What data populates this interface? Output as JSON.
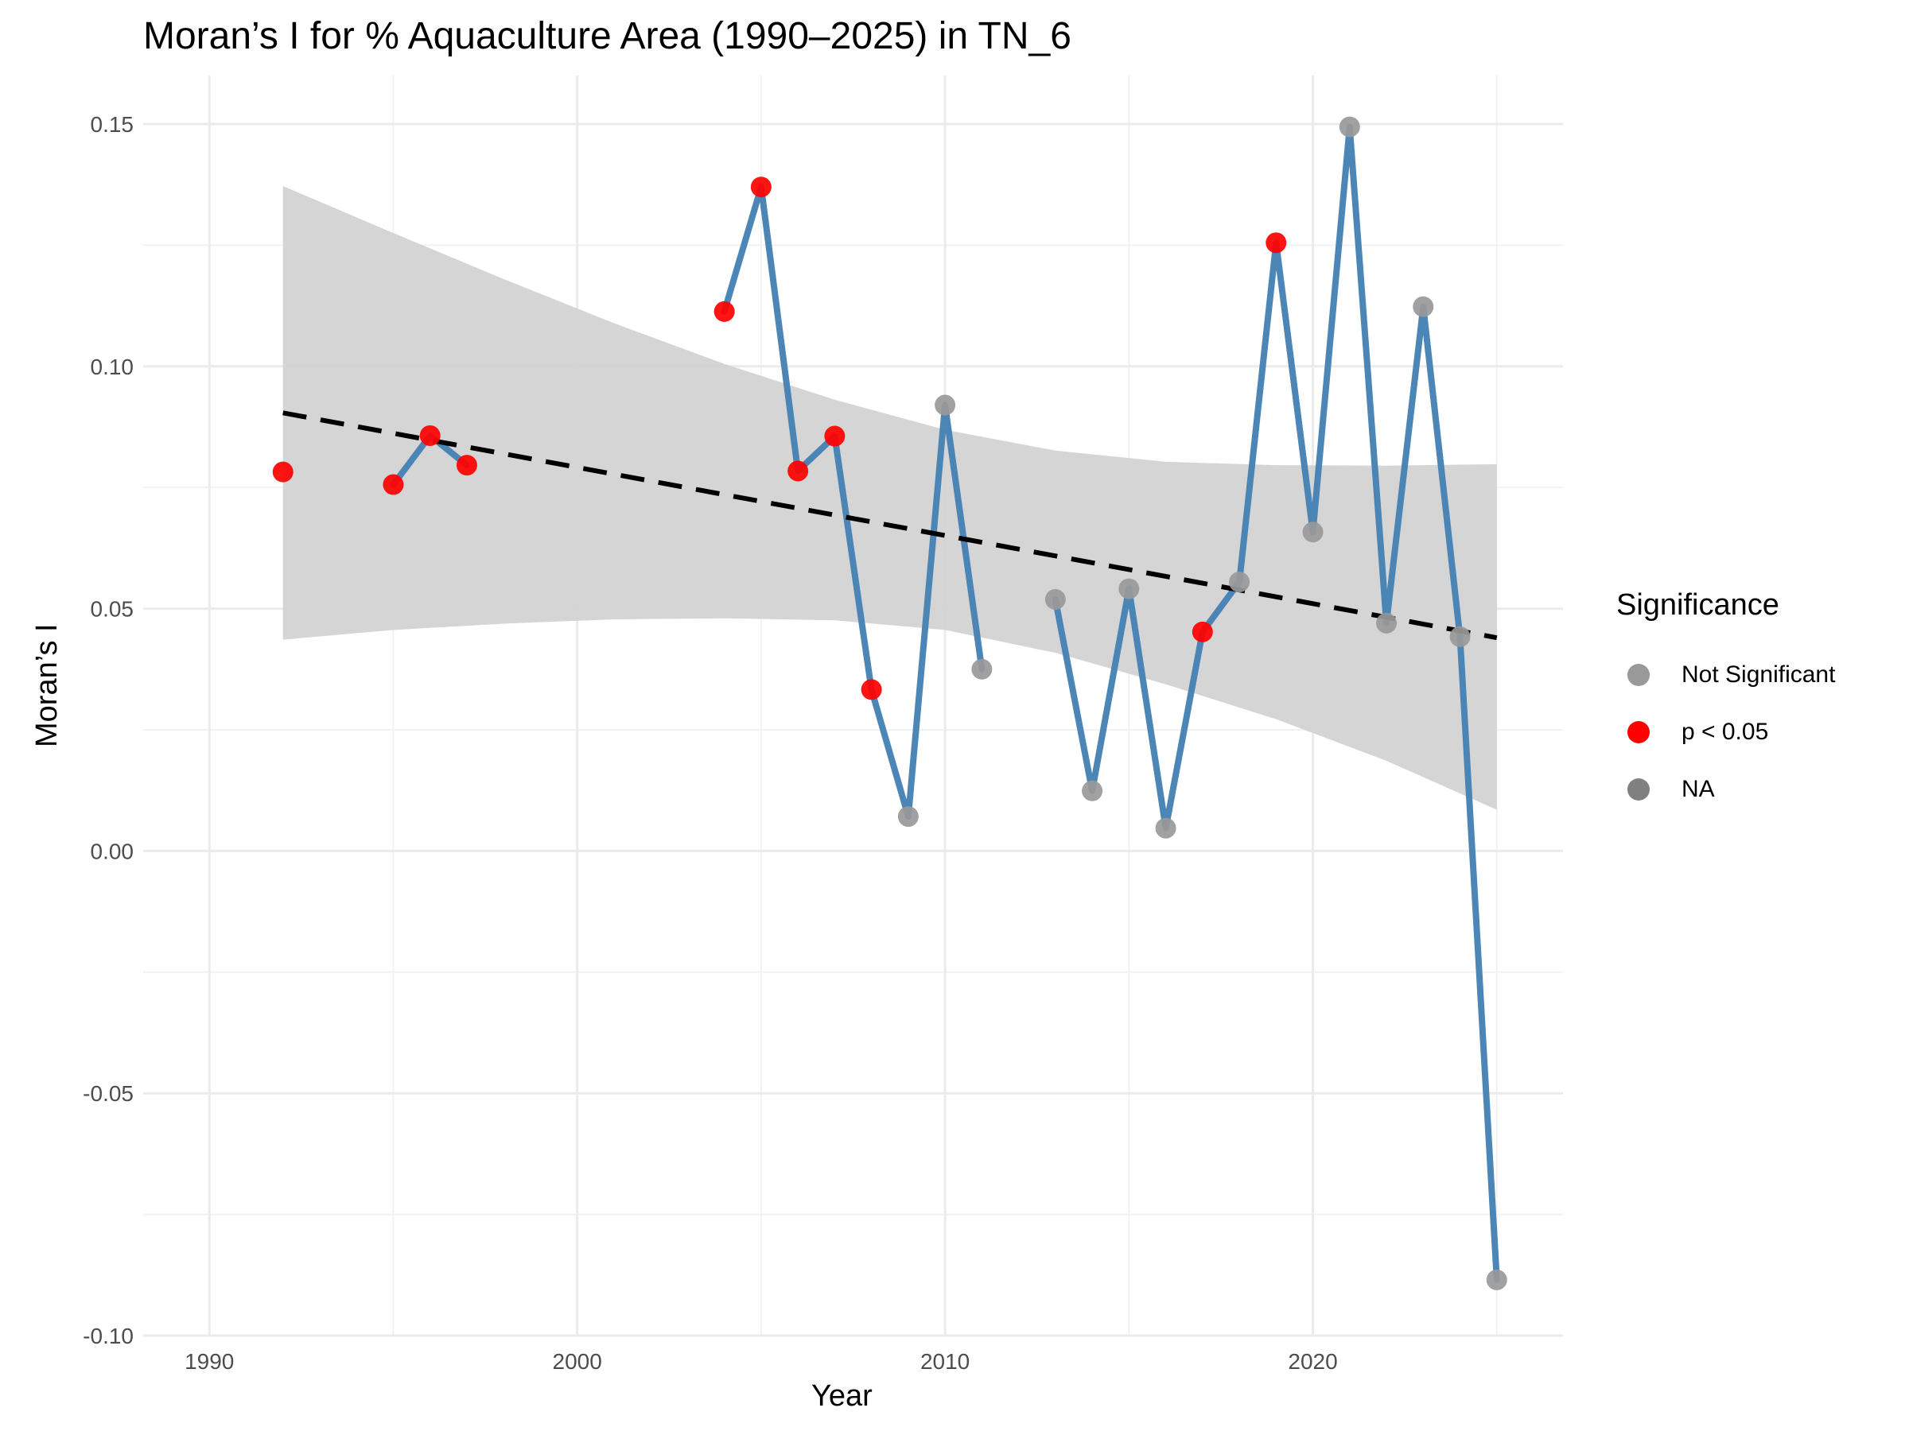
{
  "chart_data": {
    "type": "line",
    "title": "Moran’s I for % Aquaculture Area (1990–2025) in TN_6",
    "xlabel": "Year",
    "ylabel": "Moran’s I",
    "xlim": [
      1988.2,
      2026.8
    ],
    "ylim": [
      -0.1,
      0.16
    ],
    "x_ticks": [
      1990,
      2000,
      2010,
      2020
    ],
    "x_tick_labels": [
      "1990",
      "2000",
      "2010",
      "2020"
    ],
    "y_ticks": [
      -0.1,
      -0.05,
      0.0,
      0.05,
      0.1,
      0.15
    ],
    "y_tick_labels": [
      "-0.10",
      "-0.05",
      "0.00",
      "0.05",
      "0.10",
      "0.15"
    ],
    "grid": true,
    "legend": {
      "title": "Significance",
      "position": "right",
      "entries": [
        {
          "label": "Not Significant",
          "color": "#999999"
        },
        {
          "label": "p < 0.05",
          "color": "#ff0000"
        },
        {
          "label": "NA",
          "color": "#808080"
        }
      ]
    },
    "line_color": "#4682b4",
    "points": [
      {
        "x": 1992,
        "y": 0.0782,
        "significance": "p < 0.05"
      },
      {
        "x": 1995,
        "y": 0.0756,
        "significance": "p < 0.05"
      },
      {
        "x": 1996,
        "y": 0.0857,
        "significance": "p < 0.05"
      },
      {
        "x": 1997,
        "y": 0.0796,
        "significance": "p < 0.05"
      },
      {
        "x": 2004,
        "y": 0.1113,
        "significance": "p < 0.05"
      },
      {
        "x": 2005,
        "y": 0.137,
        "significance": "p < 0.05"
      },
      {
        "x": 2006,
        "y": 0.0784,
        "significance": "p < 0.05"
      },
      {
        "x": 2007,
        "y": 0.0856,
        "significance": "p < 0.05"
      },
      {
        "x": 2008,
        "y": 0.0333,
        "significance": "p < 0.05"
      },
      {
        "x": 2009,
        "y": 0.0071,
        "significance": "Not Significant"
      },
      {
        "x": 2010,
        "y": 0.092,
        "significance": "Not Significant"
      },
      {
        "x": 2011,
        "y": 0.0375,
        "significance": "Not Significant"
      },
      {
        "x": 2013,
        "y": 0.0519,
        "significance": "Not Significant"
      },
      {
        "x": 2014,
        "y": 0.0124,
        "significance": "Not Significant"
      },
      {
        "x": 2015,
        "y": 0.0541,
        "significance": "Not Significant"
      },
      {
        "x": 2016,
        "y": 0.0047,
        "significance": "Not Significant"
      },
      {
        "x": 2017,
        "y": 0.0452,
        "significance": "p < 0.05"
      },
      {
        "x": 2018,
        "y": 0.0555,
        "significance": "Not Significant"
      },
      {
        "x": 2019,
        "y": 0.1255,
        "significance": "p < 0.05"
      },
      {
        "x": 2020,
        "y": 0.0658,
        "significance": "Not Significant"
      },
      {
        "x": 2021,
        "y": 0.1494,
        "significance": "Not Significant"
      },
      {
        "x": 2022,
        "y": 0.047,
        "significance": "Not Significant"
      },
      {
        "x": 2023,
        "y": 0.1123,
        "significance": "Not Significant"
      },
      {
        "x": 2024,
        "y": 0.0442,
        "significance": "Not Significant"
      },
      {
        "x": 2025,
        "y": -0.0885,
        "significance": "Not Significant"
      }
    ],
    "line_segments": [
      [
        1995,
        1996,
        1997
      ],
      [
        2004,
        2005,
        2006,
        2007,
        2008,
        2009,
        2010,
        2011
      ],
      [
        2013,
        2014,
        2015,
        2016,
        2017,
        2018,
        2019,
        2020,
        2021,
        2022,
        2023,
        2024,
        2025
      ]
    ],
    "trend": {
      "type": "linear",
      "style": "dashed",
      "color": "#000000",
      "x": [
        1992,
        2025
      ],
      "y": [
        0.0904,
        0.044
      ]
    },
    "confidence_band": {
      "color": "#d3d3d3",
      "x": [
        1992,
        1995,
        1998,
        2001,
        2004,
        2007,
        2010,
        2013,
        2016,
        2019,
        2022,
        2025
      ],
      "upper": [
        0.1372,
        0.1275,
        0.118,
        0.1089,
        0.1005,
        0.0931,
        0.0869,
        0.0826,
        0.0803,
        0.0796,
        0.0795,
        0.0798
      ],
      "lower": [
        0.0436,
        0.0456,
        0.0469,
        0.0478,
        0.048,
        0.0476,
        0.0456,
        0.0409,
        0.0344,
        0.0272,
        0.0186,
        0.0085
      ]
    }
  }
}
